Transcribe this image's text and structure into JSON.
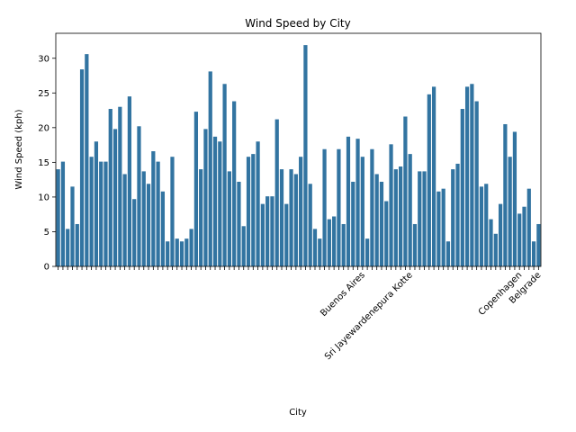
{
  "chart_data": {
    "type": "bar",
    "title": "Wind Speed by City",
    "x_label": "City",
    "y_label": "Wind Speed (kph)",
    "color": "#3274a1",
    "categories": [
      null,
      null,
      null,
      null,
      null,
      null,
      null,
      null,
      null,
      null,
      null,
      null,
      null,
      null,
      null,
      null,
      null,
      null,
      null,
      null,
      null,
      null,
      null,
      null,
      null,
      null,
      null,
      null,
      null,
      null,
      null,
      null,
      null,
      null,
      null,
      null,
      null,
      null,
      null,
      null,
      null,
      null,
      null,
      null,
      null,
      null,
      null,
      null,
      null,
      null,
      null,
      null,
      null,
      null,
      null,
      null,
      null,
      null,
      null,
      null,
      null,
      null,
      null,
      null,
      "Buenos Aires",
      null,
      null,
      null,
      null,
      null,
      null,
      null,
      null,
      null,
      "Sri Jayewardenepura Kotte",
      null,
      null,
      null,
      null,
      null,
      null,
      null,
      null,
      null,
      null,
      null,
      null,
      null,
      null,
      null,
      null,
      null,
      null,
      null,
      null,
      null,
      null,
      "Copenhagen",
      null,
      null,
      null,
      "Belgrade"
    ],
    "values": [
      14.0,
      15.1,
      5.4,
      11.5,
      6.1,
      28.4,
      30.6,
      15.8,
      18.0,
      15.1,
      15.1,
      22.7,
      19.8,
      23.0,
      13.3,
      24.5,
      9.7,
      20.2,
      13.7,
      11.9,
      16.6,
      15.1,
      10.8,
      3.6,
      15.8,
      4.0,
      3.6,
      4.0,
      5.4,
      22.3,
      14.0,
      19.8,
      28.1,
      18.7,
      18.0,
      26.3,
      13.7,
      23.8,
      12.2,
      5.8,
      15.8,
      16.2,
      18.0,
      9.0,
      10.1,
      10.1,
      21.2,
      14.0,
      9.0,
      14.0,
      13.3,
      15.8,
      31.9,
      11.9,
      5.4,
      4.0,
      16.9,
      6.8,
      7.2,
      16.9,
      6.1,
      18.7,
      12.2,
      18.4,
      15.8,
      4.0,
      16.9,
      13.3,
      12.2,
      9.4,
      17.6,
      14.0,
      14.4,
      21.6,
      16.2,
      6.1,
      13.7,
      13.7,
      24.8,
      25.9,
      10.8,
      11.2,
      3.6,
      14.0,
      14.8,
      22.7,
      25.9,
      26.3,
      23.8,
      11.5,
      11.9,
      6.8,
      4.7,
      9.0,
      20.5,
      15.8,
      19.4,
      7.6,
      8.6,
      11.2,
      3.6,
      6.1
    ],
    "ylim": [
      0,
      33.6
    ],
    "yticks": [
      0,
      5,
      10,
      15,
      20,
      25,
      30
    ]
  }
}
